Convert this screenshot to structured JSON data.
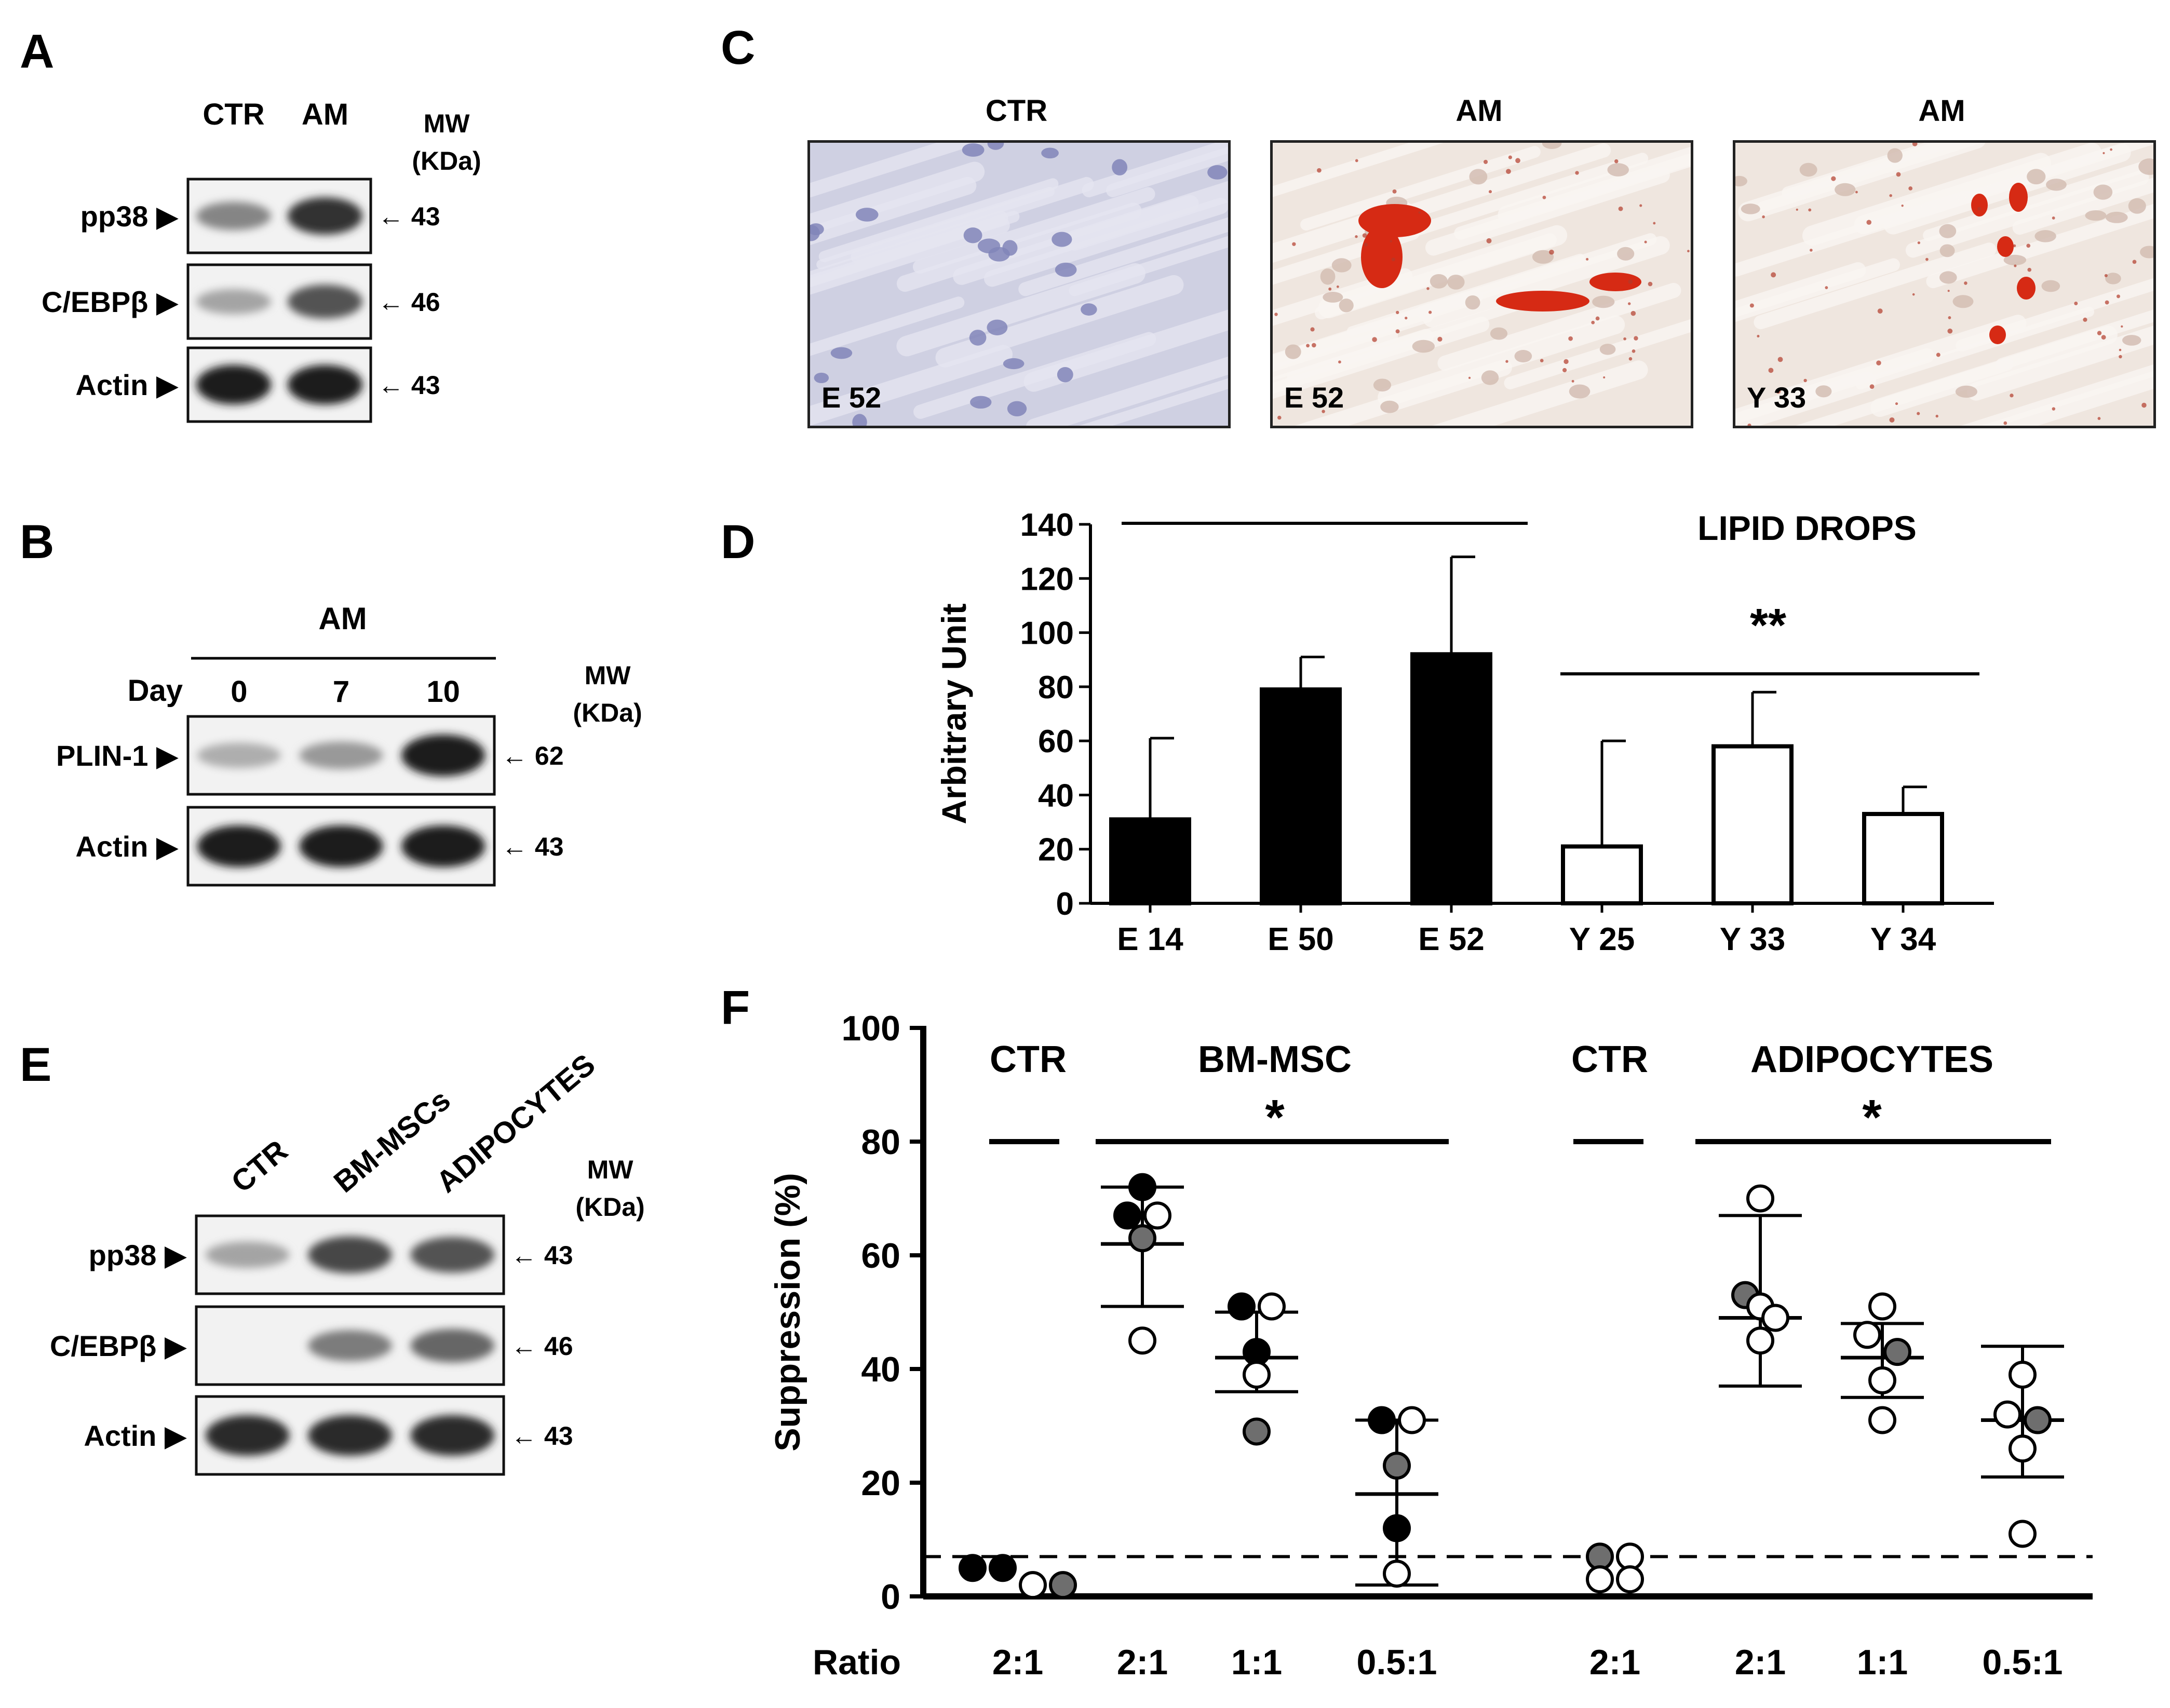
{
  "panels": {
    "A": {
      "letter": "A",
      "lanes": [
        "CTR",
        "AM"
      ],
      "mw_title": [
        "MW",
        "(KDa)"
      ],
      "rows": [
        {
          "protein": "pp38 ▶",
          "mw": "← 43",
          "bands": [
            0.45,
            0.85
          ]
        },
        {
          "protein": "C/EBPβ ▶",
          "mw": "← 46",
          "bands": [
            0.3,
            0.7
          ]
        },
        {
          "protein": "Actin ▶",
          "mw": "← 43",
          "bands": [
            0.95,
            0.95
          ]
        }
      ]
    },
    "B": {
      "letter": "B",
      "group": "AM",
      "day_label": "Day",
      "lanes": [
        "0",
        "7",
        "10"
      ],
      "mw_title": [
        "MW",
        "(KDa)"
      ],
      "rows": [
        {
          "protein": "PLIN-1 ▶",
          "mw": "← 62",
          "bands": [
            0.25,
            0.35,
            0.95
          ]
        },
        {
          "protein": "Actin ▶",
          "mw": "← 43",
          "bands": [
            0.95,
            0.95,
            0.95
          ]
        }
      ]
    },
    "C": {
      "letter": "C",
      "images": [
        {
          "title": "CTR",
          "sample": "E 52",
          "stain": "hematoxylin"
        },
        {
          "title": "AM",
          "sample": "E 52",
          "stain": "oil-red-o"
        },
        {
          "title": "AM",
          "sample": "Y 33",
          "stain": "oil-red-o"
        }
      ]
    },
    "E": {
      "letter": "E",
      "lanes": [
        "CTR",
        "BM-MSCs",
        "ADIPOCYTES"
      ],
      "mw_title": [
        "MW",
        "(KDa)"
      ],
      "rows": [
        {
          "protein": "pp38 ▶",
          "mw": "← 43",
          "bands": [
            0.3,
            0.75,
            0.7
          ]
        },
        {
          "protein": "C/EBPβ ▶",
          "mw": "← 46",
          "bands": [
            0.0,
            0.5,
            0.6
          ]
        },
        {
          "protein": "Actin ▶",
          "mw": "← 43",
          "bands": [
            0.9,
            0.9,
            0.9
          ]
        }
      ]
    }
  },
  "chart_data": [
    {
      "panel": "D",
      "letter": "D",
      "type": "bar",
      "title": "LIPID DROPS",
      "ylabel": "Arbitrary Unit",
      "xlabel": "",
      "ylim": [
        0,
        140
      ],
      "yticks": [
        0,
        20,
        40,
        60,
        80,
        100,
        120,
        140
      ],
      "categories": [
        "E 14",
        "E 50",
        "E 52",
        "Y 25",
        "Y 33",
        "Y 34"
      ],
      "values": [
        31,
        79,
        92,
        21,
        58,
        33
      ],
      "errors": [
        30,
        12,
        36,
        39,
        20,
        10
      ],
      "bar_fill": [
        "#000000",
        "#000000",
        "#000000",
        "#ffffff",
        "#ffffff",
        "#ffffff"
      ],
      "significance": {
        "label": "**"
      },
      "grid": false
    },
    {
      "panel": "F",
      "letter": "F",
      "type": "scatter",
      "ylabel": "Suppression (%)",
      "xlabel": "",
      "ylim": [
        0,
        100
      ],
      "yticks": [
        0,
        20,
        40,
        60,
        80,
        100
      ],
      "ratio_label": "Ratio",
      "baseline": 7,
      "groups": [
        {
          "header": "CTR",
          "significance": ""
        },
        {
          "header": "BM-MSC",
          "significance": "*"
        },
        {
          "header": "CTR",
          "significance": ""
        },
        {
          "header": "ADIPOCYTES",
          "significance": "*"
        }
      ],
      "columns": [
        {
          "ratio": "2:1",
          "mean": null,
          "sd_low": null,
          "sd_high": null,
          "points": [
            {
              "y": 5,
              "c": "black"
            },
            {
              "y": 5,
              "c": "black"
            },
            {
              "y": 2,
              "c": "white"
            },
            {
              "y": 2,
              "c": "gray"
            }
          ]
        },
        {
          "ratio": "2:1",
          "mean": 62,
          "sd_low": 51,
          "sd_high": 72,
          "points": [
            {
              "y": 72,
              "c": "black"
            },
            {
              "y": 67,
              "c": "black"
            },
            {
              "y": 67,
              "c": "white"
            },
            {
              "y": 63,
              "c": "gray"
            },
            {
              "y": 45,
              "c": "white"
            }
          ]
        },
        {
          "ratio": "1:1",
          "mean": 42,
          "sd_low": 36,
          "sd_high": 50,
          "points": [
            {
              "y": 51,
              "c": "black"
            },
            {
              "y": 51,
              "c": "white"
            },
            {
              "y": 43,
              "c": "black"
            },
            {
              "y": 39,
              "c": "white"
            },
            {
              "y": 29,
              "c": "gray"
            }
          ]
        },
        {
          "ratio": "0.5:1",
          "mean": 18,
          "sd_low": 2,
          "sd_high": 31,
          "points": [
            {
              "y": 31,
              "c": "black"
            },
            {
              "y": 31,
              "c": "white"
            },
            {
              "y": 23,
              "c": "gray"
            },
            {
              "y": 12,
              "c": "black"
            },
            {
              "y": 4,
              "c": "white"
            }
          ]
        },
        {
          "ratio": "2:1",
          "mean": null,
          "sd_low": null,
          "sd_high": null,
          "points": [
            {
              "y": 7,
              "c": "gray"
            },
            {
              "y": 7,
              "c": "white"
            },
            {
              "y": 3,
              "c": "white"
            },
            {
              "y": 3,
              "c": "white"
            }
          ]
        },
        {
          "ratio": "2:1",
          "mean": 49,
          "sd_low": 37,
          "sd_high": 67,
          "points": [
            {
              "y": 70,
              "c": "white"
            },
            {
              "y": 53,
              "c": "gray"
            },
            {
              "y": 51,
              "c": "white"
            },
            {
              "y": 49,
              "c": "white"
            },
            {
              "y": 45,
              "c": "white"
            }
          ]
        },
        {
          "ratio": "1:1",
          "mean": 42,
          "sd_low": 35,
          "sd_high": 48,
          "points": [
            {
              "y": 51,
              "c": "white"
            },
            {
              "y": 46,
              "c": "white"
            },
            {
              "y": 43,
              "c": "gray"
            },
            {
              "y": 38,
              "c": "white"
            },
            {
              "y": 31,
              "c": "white"
            }
          ]
        },
        {
          "ratio": "0.5:1",
          "mean": 31,
          "sd_low": 21,
          "sd_high": 44,
          "points": [
            {
              "y": 39,
              "c": "white"
            },
            {
              "y": 32,
              "c": "white"
            },
            {
              "y": 31,
              "c": "gray"
            },
            {
              "y": 26,
              "c": "white"
            },
            {
              "y": 11,
              "c": "white"
            }
          ]
        }
      ]
    }
  ]
}
